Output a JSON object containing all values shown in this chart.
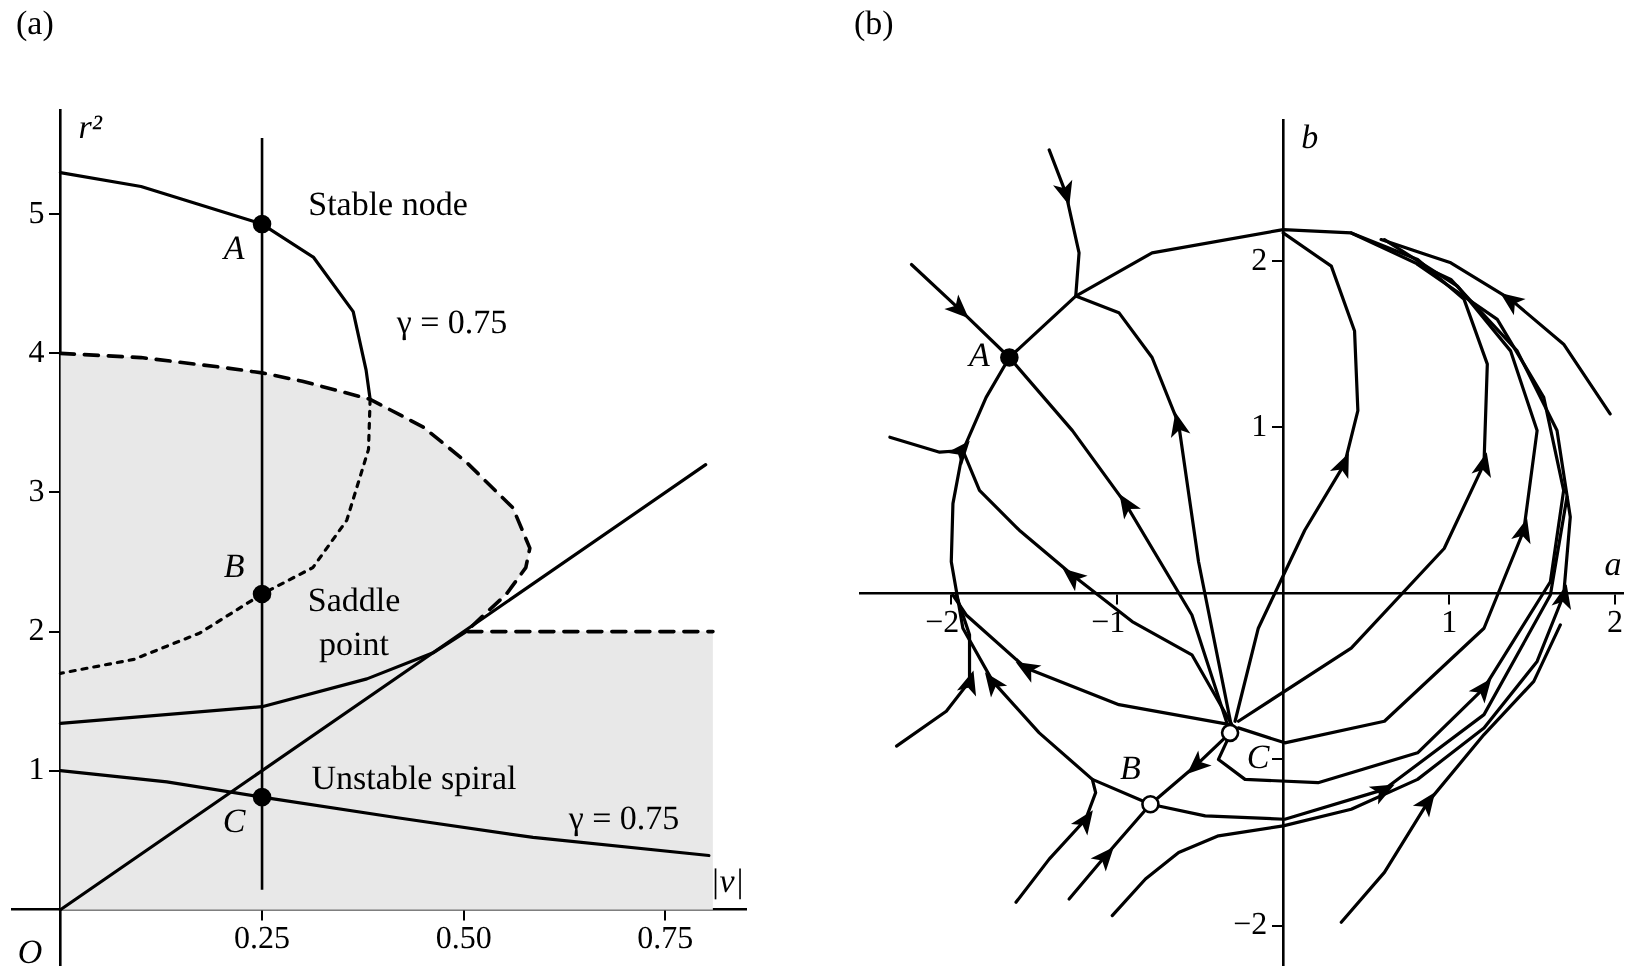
{
  "chart_data": [
    {
      "type": "line",
      "title": "(a)",
      "xlabel": "|v|",
      "ylabel": "r²",
      "xlim": [
        -0.06,
        0.85
      ],
      "ylim": [
        -0.4,
        5.75
      ],
      "xticks": [
        0.25,
        {
          "value": 0.5,
          "label": "0.50"
        },
        0.75
      ],
      "yticks": [
        1,
        2,
        3,
        4,
        5
      ],
      "series": [
        {
          "type": "area",
          "color": "#e8e8e8",
          "line_style": "dashed",
          "x": [
            0,
            0.1,
            0.2,
            0.25,
            0.3,
            0.384,
            0.45,
            0.503,
            0.561,
            0.582,
            0.577,
            0.553,
            0.503,
            0.809
          ],
          "values": [
            4.0,
            3.97,
            3.9,
            3.86,
            3.8,
            3.67,
            3.47,
            3.22,
            2.89,
            2.6,
            2.46,
            2.27,
            2.0,
            2.0
          ]
        },
        {
          "type": "line",
          "color": "#000000",
          "x": [
            0,
            0.1,
            0.2,
            0.25,
            0.314,
            0.363,
            0.379,
            0.384
          ],
          "values": [
            5.3,
            5.2,
            5.02,
            4.93,
            4.69,
            4.3,
            3.88,
            3.67
          ]
        },
        {
          "type": "line",
          "color": "#000000",
          "line_style": "dotted",
          "x": [
            0.384,
            0.382,
            0.355,
            0.313,
            0.25,
            0.173,
            0.091,
            0
          ],
          "values": [
            3.67,
            3.31,
            2.8,
            2.46,
            2.27,
            1.99,
            1.8,
            1.7
          ]
        },
        {
          "type": "line",
          "color": "#000000",
          "x": [
            0,
            0.25,
            0.38,
            0.463,
            0.503
          ],
          "values": [
            1.34,
            1.46,
            1.66,
            1.85,
            2.0
          ]
        },
        {
          "type": "line",
          "color": "#000000",
          "x": [
            0,
            0.8
          ],
          "values": [
            0,
            3.2
          ]
        },
        {
          "type": "line",
          "color": "#000000",
          "x": [
            0,
            0.132,
            0.25,
            0.42,
            0.586,
            0.804
          ],
          "values": [
            1.0,
            0.92,
            0.81,
            0.66,
            0.52,
            0.39
          ]
        },
        {
          "type": "scatter",
          "color": "#000000",
          "marker": "circle",
          "x": [
            0.25,
            0.25,
            0.25
          ],
          "values": [
            4.93,
            2.27,
            0.81
          ],
          "value_labels": [
            "A",
            "B",
            "C"
          ]
        }
      ],
      "ref_lines": [
        {
          "axis": "x",
          "value": 0.25,
          "color": "#000000"
        }
      ],
      "annotations": [
        "Stable node",
        "γ = 0.75",
        "Saddle\npoint",
        "Unstable spiral",
        "γ = 0.75",
        "O"
      ]
    },
    {
      "type": "line",
      "title": "(b)",
      "xlabel": "a",
      "ylabel": "b",
      "xlim": [
        -2.55,
        2.05
      ],
      "ylim": [
        -2.24,
        2.85
      ],
      "xticks": [
        {
          "value": -2,
          "label": "−2"
        },
        {
          "value": -1,
          "label": "−1"
        },
        1,
        2
      ],
      "yticks": [
        {
          "value": -2,
          "label": "−2"
        },
        {
          "value": -1,
          "label": null
        },
        1,
        2
      ],
      "series": [
        {
          "type": "line",
          "color": "#000000",
          "x": [
            -2.24,
            -1.95,
            -1.65
          ],
          "values": [
            1.98,
            1.71,
            1.42
          ]
        },
        {
          "type": "line",
          "color": "#000000",
          "x": [
            -0.32,
            -0.55,
            -0.95,
            -1.27,
            -1.65
          ],
          "values": [
            -0.84,
            -0.13,
            0.54,
            0.98,
            1.42
          ]
        },
        {
          "type": "line",
          "color": "#000000",
          "x": [
            -1.03,
            -0.83,
            -0.63,
            -0.39,
            0,
            0.41,
            0.81,
            1.21,
            1.53,
            1.69,
            1.73,
            1.65,
            1.41,
            1.01,
            0.41,
            0,
            -0.79,
            -1.25,
            -1.65
          ],
          "values": [
            -1.94,
            -1.72,
            -1.56,
            -1.46,
            -1.4,
            -1.3,
            -1.12,
            -0.81,
            -0.41,
            -0.01,
            0.46,
            0.98,
            1.46,
            1.89,
            2.17,
            2.19,
            2.05,
            1.79,
            1.42
          ]
        },
        {
          "type": "line",
          "color": "#000000",
          "x": [
            -1.41,
            -1.31,
            -1.23,
            -1.25
          ],
          "values": [
            2.67,
            2.41,
            2.05,
            1.79
          ]
        },
        {
          "type": "line",
          "color": "#000000",
          "x": [
            -0.31,
            -0.39,
            -0.51,
            -0.63,
            -0.79,
            -0.99,
            -1.25
          ],
          "values": [
            -0.81,
            -0.41,
            0.19,
            1.02,
            1.42,
            1.69,
            1.79
          ]
        },
        {
          "type": "line",
          "color": "#000000",
          "x": [
            -0.29,
            -0.15,
            0.13,
            0.37,
            0.45,
            0.43,
            0.29,
            0
          ],
          "values": [
            -0.77,
            -0.21,
            0.38,
            0.78,
            1.1,
            1.58,
            1.97,
            2.17
          ]
        },
        {
          "type": "line",
          "color": "#000000",
          "x": [
            -0.27,
            0.41,
            0.97,
            1.21,
            1.23,
            1.09,
            0.81,
            0.41
          ],
          "values": [
            -0.77,
            -0.33,
            0.27,
            0.78,
            1.38,
            1.77,
            2.01,
            2.17
          ]
        },
        {
          "type": "line",
          "color": "#000000",
          "x": [
            -0.27,
            0.01,
            0.61,
            1.21,
            1.45,
            1.53,
            1.37,
            1.05,
            0.61
          ],
          "values": [
            -0.81,
            -0.9,
            -0.77,
            -0.21,
            0.38,
            0.98,
            1.46,
            1.85,
            2.13
          ]
        },
        {
          "type": "line",
          "color": "#000000",
          "x": [
            -0.33,
            -0.39,
            -0.23,
            0.21,
            0.81,
            1.21,
            1.61,
            1.69,
            1.57,
            1.29,
            0.81
          ],
          "values": [
            -0.87,
            -1.0,
            -1.12,
            -1.14,
            -0.96,
            -0.57,
            0.07,
            0.62,
            1.18,
            1.65,
            1.98
          ]
        },
        {
          "type": "line",
          "color": "#000000",
          "x": [
            -0.8,
            -0.47,
            0.01,
            0.61,
            1.21,
            1.61,
            1.71
          ],
          "values": [
            -1.27,
            -1.34,
            -1.36,
            -1.18,
            -0.73,
            -0.01,
            0.58
          ]
        },
        {
          "type": "line",
          "color": "#000000",
          "x": [
            0.35,
            0.61,
            0.87,
            1.21,
            1.51,
            1.67
          ],
          "values": [
            -1.98,
            -1.68,
            -1.26,
            -0.85,
            -0.53,
            -0.19
          ]
        },
        {
          "type": "line",
          "color": "#000000",
          "x": [
            1.97,
            1.69,
            1.37,
            1.01,
            0.59
          ],
          "values": [
            1.08,
            1.5,
            1.77,
            1.99,
            2.13
          ]
        },
        {
          "type": "line",
          "color": "#000000",
          "x": [
            -2.37,
            -2.07,
            -1.93,
            -1.79,
            -1.65
          ],
          "values": [
            0.94,
            0.85,
            0.86,
            1.18,
            1.42
          ]
        },
        {
          "type": "line",
          "color": "#000000",
          "x": [
            -0.31,
            -0.55,
            -0.91,
            -1.27,
            -1.59,
            -1.83,
            -1.93
          ],
          "values": [
            -0.79,
            -0.37,
            -0.17,
            0.11,
            0.38,
            0.62,
            0.86
          ]
        },
        {
          "type": "line",
          "color": "#000000",
          "x": [
            -0.8,
            -1.15,
            -1.47,
            -1.75,
            -1.93,
            -2.0,
            -1.99,
            -1.93
          ],
          "values": [
            -1.27,
            -1.12,
            -0.84,
            -0.53,
            -0.21,
            0.19,
            0.54,
            0.86
          ]
        },
        {
          "type": "line",
          "color": "#000000",
          "x": [
            -0.32,
            -0.99,
            -1.55,
            -1.91,
            -1.99
          ],
          "values": [
            -0.79,
            -0.67,
            -0.45,
            -0.13,
            -0.01
          ]
        },
        {
          "type": "line",
          "color": "#000000",
          "x": [
            -2.33,
            -2.03,
            -1.89,
            -1.89,
            -1.97
          ],
          "values": [
            -0.92,
            -0.71,
            -0.53,
            -0.25,
            -0.01
          ]
        },
        {
          "type": "line",
          "color": "#000000",
          "x": [
            -1.61,
            -1.41,
            -1.19,
            -1.13,
            -1.15
          ],
          "values": [
            -1.86,
            -1.6,
            -1.36,
            -1.2,
            -1.12
          ]
        },
        {
          "type": "line",
          "color": "#000000",
          "x": [
            -1.29,
            -1.07,
            -0.8
          ],
          "values": [
            -1.84,
            -1.58,
            -1.27
          ]
        },
        {
          "type": "line",
          "color": "#000000",
          "x": [
            -0.32,
            -0.53,
            -0.8
          ],
          "values": [
            -0.84,
            -1.04,
            -1.27
          ]
        },
        {
          "type": "scatter",
          "color": "#000000",
          "marker": "circle",
          "x": [
            -1.65
          ],
          "values": [
            1.42
          ],
          "value_labels": [
            "A"
          ]
        },
        {
          "type": "scatter",
          "color": "#ffffff",
          "marker": "circle",
          "x": [
            -0.32,
            -0.8
          ],
          "values": [
            -0.84,
            -1.27
          ],
          "value_labels": [
            "C",
            "B"
          ]
        }
      ]
    }
  ]
}
